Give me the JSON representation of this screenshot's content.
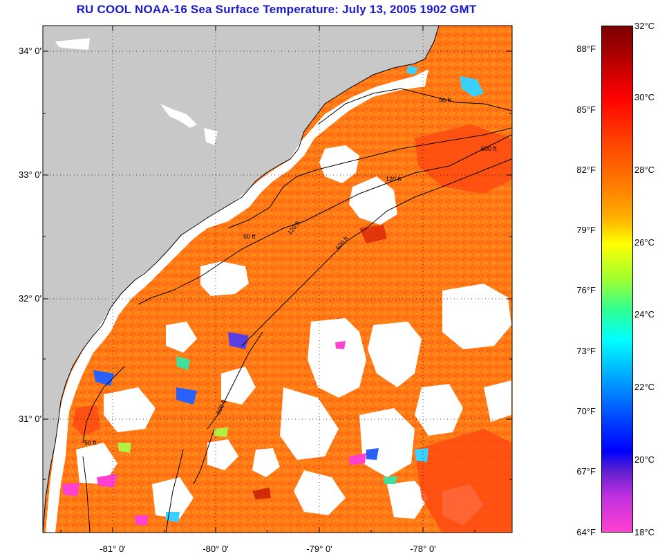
{
  "title": "RU COOL  NOAA-16  Sea Surface Temperature:  July 13, 2005 1902 GMT",
  "map": {
    "lat_labels": [
      "34° 0'",
      "33° 0'",
      "32° 0'",
      "31° 0'"
    ],
    "lon_labels": [
      "-81° 0'",
      "-80° 0'",
      "-79° 0'",
      "-78° 0'"
    ],
    "contour_labels": [
      "50 ft",
      "120 ft",
      "600 ft"
    ],
    "colors": {
      "land": "#c8c8c8",
      "cloud": "#ffffff",
      "warm_sst": "#ff7a14",
      "hot_sst": "#ff4a10",
      "cool_patch": "#3ad0ff",
      "cold_patch": "#ff40d0"
    }
  },
  "colorbar": {
    "fahrenheit_labels": [
      "88°F",
      "85°F",
      "82°F",
      "79°F",
      "76°F",
      "73°F",
      "70°F",
      "67°F",
      "64°F"
    ],
    "celsius_labels": [
      "32°C",
      "30°C",
      "28°C",
      "26°C",
      "24°C",
      "22°C",
      "20°C",
      "18°C"
    ],
    "range_c": [
      18,
      32
    ]
  }
}
